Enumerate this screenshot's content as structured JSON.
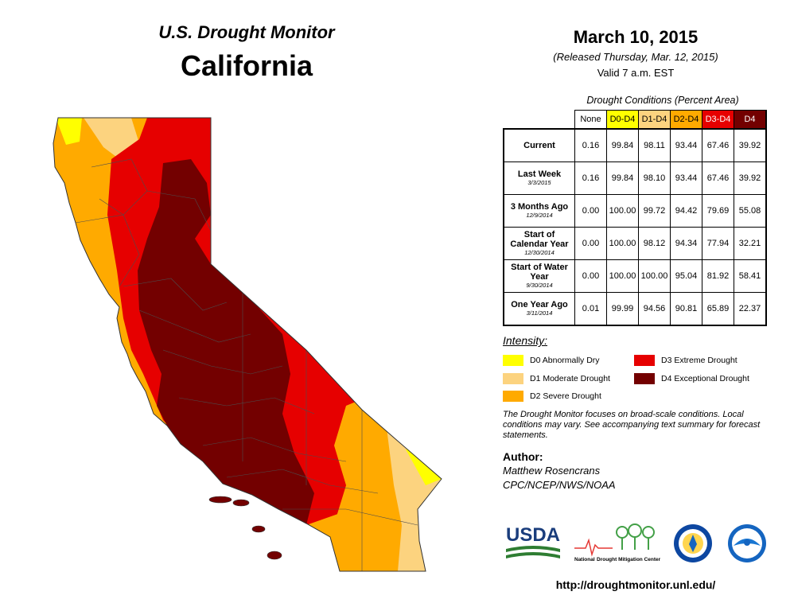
{
  "header": {
    "title": "U.S. Drought Monitor",
    "state": "California"
  },
  "date": {
    "title": "March 10, 2015",
    "released": "(Released Thursday, Mar. 12, 2015)",
    "valid": "Valid 7 a.m. EST"
  },
  "table": {
    "caption": "Drought Conditions (Percent Area)",
    "columns": [
      {
        "label": "None",
        "color": "#ffffff"
      },
      {
        "label": "D0-D4",
        "color": "#ffff00"
      },
      {
        "label": "D1-D4",
        "color": "#fcd37f"
      },
      {
        "label": "D2-D4",
        "color": "#ffaa00"
      },
      {
        "label": "D3-D4",
        "color": "#e60000"
      },
      {
        "label": "D4",
        "color": "#730000"
      }
    ],
    "rows": [
      {
        "label": "Current",
        "sub": "",
        "values": [
          "0.16",
          "99.84",
          "98.11",
          "93.44",
          "67.46",
          "39.92"
        ]
      },
      {
        "label": "Last Week",
        "sub": "3/3/2015",
        "values": [
          "0.16",
          "99.84",
          "98.10",
          "93.44",
          "67.46",
          "39.92"
        ]
      },
      {
        "label": "3 Months Ago",
        "sub": "12/9/2014",
        "values": [
          "0.00",
          "100.00",
          "99.72",
          "94.42",
          "79.69",
          "55.08"
        ]
      },
      {
        "label": "Start of Calendar Year",
        "sub": "12/30/2014",
        "values": [
          "0.00",
          "100.00",
          "98.12",
          "94.34",
          "77.94",
          "32.21"
        ]
      },
      {
        "label": "Start of Water Year",
        "sub": "9/30/2014",
        "values": [
          "0.00",
          "100.00",
          "100.00",
          "95.04",
          "81.92",
          "58.41"
        ]
      },
      {
        "label": "One Year Ago",
        "sub": "3/11/2014",
        "values": [
          "0.01",
          "99.99",
          "94.56",
          "90.81",
          "65.89",
          "22.37"
        ]
      }
    ]
  },
  "legend": {
    "title": "Intensity:",
    "items": [
      {
        "label": "D0 Abnormally Dry",
        "color": "#ffff00"
      },
      {
        "label": "D1 Moderate Drought",
        "color": "#fcd37f"
      },
      {
        "label": "D2 Severe Drought",
        "color": "#ffaa00"
      },
      {
        "label": "D3 Extreme Drought",
        "color": "#e60000"
      },
      {
        "label": "D4 Exceptional Drought",
        "color": "#730000"
      }
    ]
  },
  "note": "The Drought Monitor focuses on broad-scale conditions. Local conditions may vary. See accompanying text summary for forecast statements.",
  "author": {
    "label": "Author:",
    "name": "Matthew Rosencrans",
    "org": "CPC/NCEP/NWS/NOAA"
  },
  "logos": {
    "usda": "USDA",
    "ndmc_prefix": "National",
    "ndmc_main": "Drought Mitigation Center"
  },
  "url": "http://droughtmonitor.unl.edu/"
}
